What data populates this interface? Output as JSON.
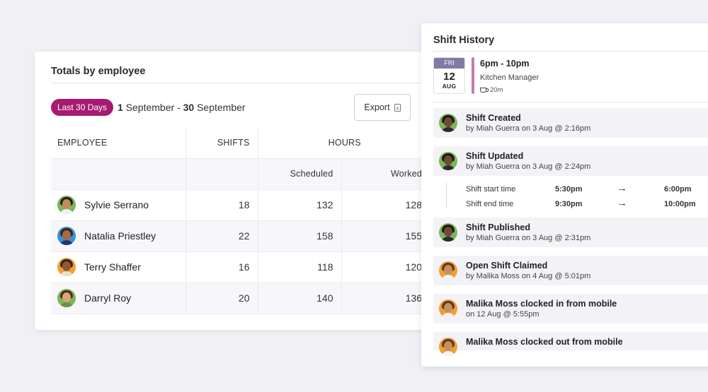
{
  "totals": {
    "title": "Totals by employee",
    "range_badge": "Last 30 Days",
    "range_start_day": "1",
    "range_start_month": " September - ",
    "range_end_day": "30",
    "range_end_month": " September",
    "export_label": "Export",
    "headers": {
      "employee": "EMPLOYEE",
      "shifts": "SHIFTS",
      "hours": "HOURS",
      "scheduled": "Scheduled",
      "worked": "Worked"
    },
    "rows": [
      {
        "name": "Sylvie Serrano",
        "shifts": "18",
        "scheduled": "132",
        "worked": "128"
      },
      {
        "name": "Natalia Priestley",
        "shifts": "22",
        "scheduled": "158",
        "worked": "155"
      },
      {
        "name": "Terry Shaffer",
        "shifts": "16",
        "scheduled": "118",
        "worked": "120"
      },
      {
        "name": "Darryl Roy",
        "shifts": "20",
        "scheduled": "140",
        "worked": "136"
      }
    ]
  },
  "history": {
    "title": "Shift History",
    "date": {
      "dow": "FRI",
      "day": "12",
      "month": "AUG"
    },
    "shift_time": "6pm - 10pm",
    "role": "Kitchen Manager",
    "break": "20m",
    "events": [
      {
        "title": "Shift Created",
        "sub": "by Miah Guerra on 3 Aug @ 2:16pm"
      },
      {
        "title": "Shift Updated",
        "sub": "by Miah Guerra on 3 Aug @ 2:24pm"
      },
      {
        "title": "Shift Published",
        "sub": "by Miah Guerra on 3 Aug @ 2:31pm"
      },
      {
        "title": "Open Shift Claimed",
        "sub": "by Malika Moss on 4 Aug @ 5:01pm"
      },
      {
        "title": "Malika Moss clocked in from mobile",
        "sub": "on 12 Aug @ 5:55pm"
      },
      {
        "title": "Malika Moss clocked out from mobile",
        "sub": ""
      }
    ],
    "changes": [
      {
        "label": "Shift start time",
        "from": "5:30pm",
        "to": "6:00pm"
      },
      {
        "label": "Shift end time",
        "from": "9:30pm",
        "to": "10:00pm"
      }
    ]
  },
  "colors": {
    "badge": "#a61a6f",
    "date_header": "#7f7aa6",
    "shift_bar": "#c77aac"
  }
}
